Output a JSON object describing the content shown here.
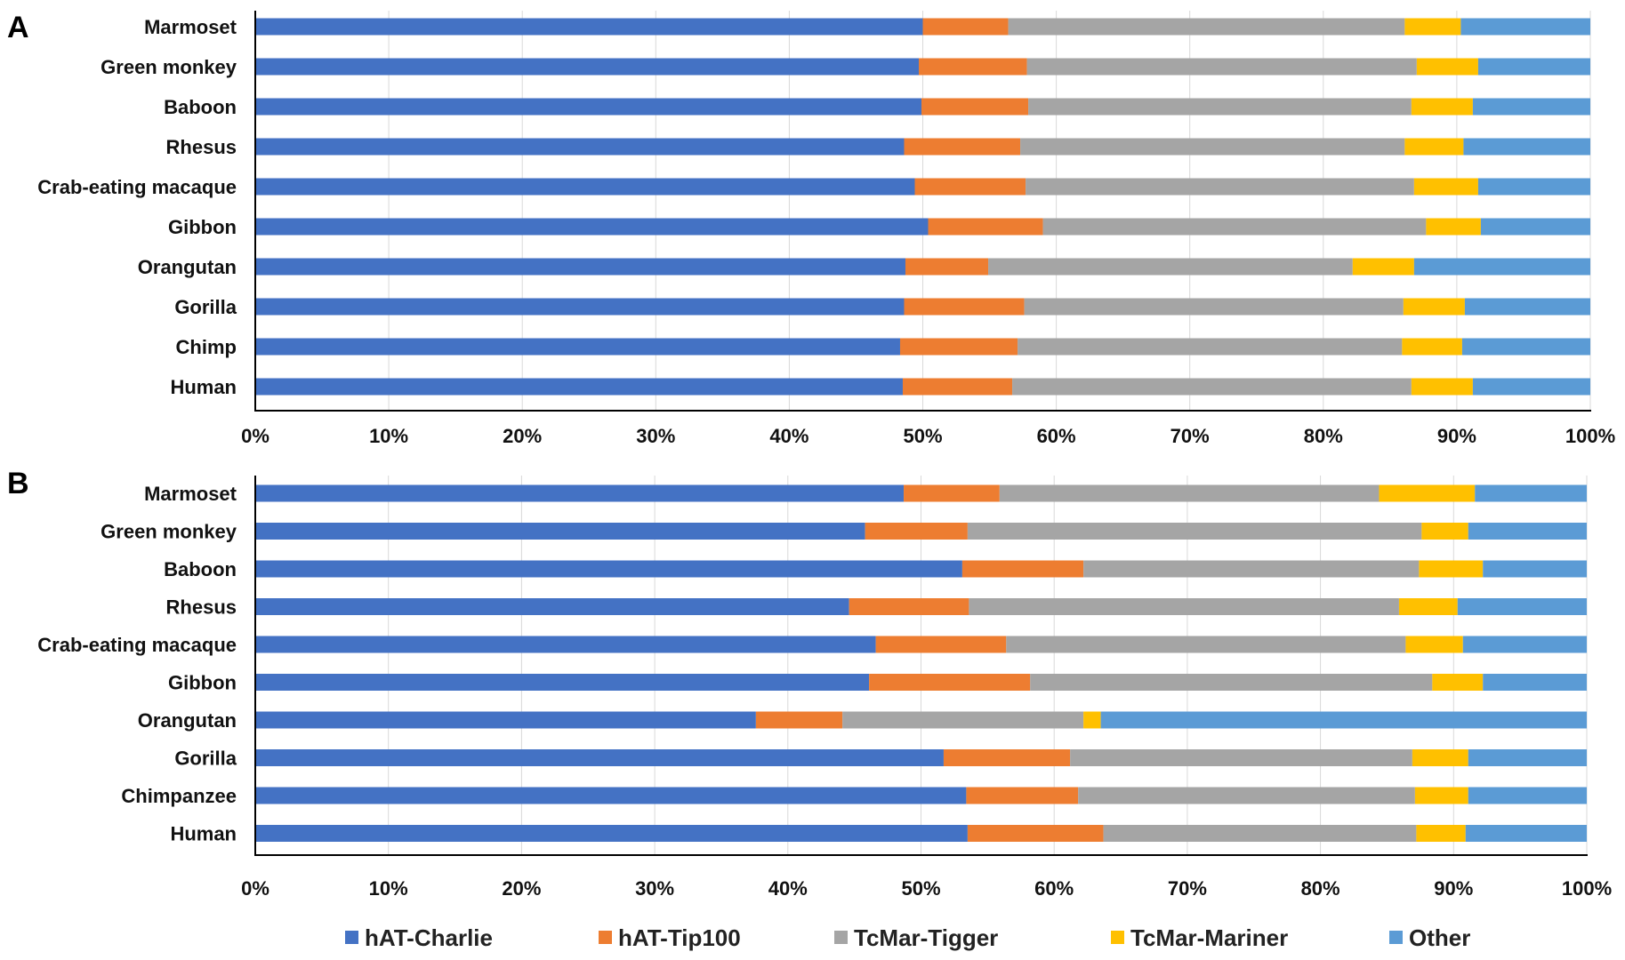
{
  "chart_data": [
    {
      "type": "bar",
      "orientation": "horizontal",
      "stacked": "percent",
      "panel": "A",
      "categories": [
        "Marmoset",
        "Green monkey",
        "Baboon",
        "Rhesus",
        "Crab-eating macaque",
        "Gibbon",
        "Orangutan",
        "Gorilla",
        "Chimp",
        "Human"
      ],
      "series": [
        {
          "name": "hAT-Charlie",
          "values": [
            50.0,
            49.7,
            49.9,
            48.6,
            49.4,
            50.4,
            48.7,
            48.6,
            48.3,
            48.5
          ]
        },
        {
          "name": "hAT-Tip100",
          "values": [
            6.4,
            8.1,
            8.0,
            8.7,
            8.3,
            8.6,
            6.2,
            9.0,
            8.8,
            8.2
          ]
        },
        {
          "name": "TcMar-Tigger",
          "values": [
            29.7,
            29.2,
            28.7,
            28.8,
            29.1,
            28.7,
            27.3,
            28.4,
            28.8,
            29.9
          ]
        },
        {
          "name": "TcMar-Mariner",
          "values": [
            4.2,
            4.6,
            4.6,
            4.4,
            4.8,
            4.1,
            4.6,
            4.6,
            4.5,
            4.6
          ]
        },
        {
          "name": "Other",
          "values": [
            9.7,
            8.4,
            8.8,
            9.5,
            8.4,
            8.2,
            13.2,
            9.4,
            9.6,
            8.8
          ]
        }
      ],
      "xlim": [
        0,
        100
      ],
      "xticks": [
        "0%",
        "10%",
        "20%",
        "30%",
        "40%",
        "50%",
        "60%",
        "70%",
        "80%",
        "90%",
        "100%"
      ],
      "grid": "vertical"
    },
    {
      "type": "bar",
      "orientation": "horizontal",
      "stacked": "percent",
      "panel": "B",
      "categories": [
        "Marmoset",
        "Green monkey",
        "Baboon",
        "Rhesus",
        "Crab-eating macaque",
        "Gibbon",
        "Orangutan",
        "Gorilla",
        "Chimpanzee",
        "Human"
      ],
      "series": [
        {
          "name": "hAT-Charlie",
          "values": [
            48.7,
            45.8,
            53.1,
            44.6,
            46.6,
            46.1,
            37.6,
            51.7,
            53.4,
            53.5
          ]
        },
        {
          "name": "hAT-Tip100",
          "values": [
            7.2,
            7.7,
            9.1,
            9.0,
            9.8,
            12.1,
            6.5,
            9.5,
            8.4,
            10.2
          ]
        },
        {
          "name": "TcMar-Tigger",
          "values": [
            28.5,
            34.1,
            25.2,
            32.3,
            30.0,
            30.2,
            18.1,
            25.7,
            25.3,
            23.5
          ]
        },
        {
          "name": "TcMar-Mariner",
          "values": [
            7.2,
            3.5,
            4.8,
            4.4,
            4.3,
            3.8,
            1.3,
            4.2,
            4.0,
            3.7
          ]
        },
        {
          "name": "Other",
          "values": [
            8.4,
            8.9,
            7.8,
            9.7,
            9.3,
            7.8,
            36.5,
            8.9,
            8.9,
            9.1
          ]
        }
      ],
      "xlim": [
        0,
        100
      ],
      "xticks": [
        "0%",
        "10%",
        "20%",
        "30%",
        "40%",
        "50%",
        "60%",
        "70%",
        "80%",
        "90%",
        "100%"
      ],
      "grid": "vertical"
    }
  ],
  "legend": {
    "position": "bottom",
    "entries": [
      "hAT-Charlie",
      "hAT-Tip100",
      "TcMar-Tigger",
      "TcMar-Mariner",
      "Other"
    ]
  },
  "colors": {
    "hAT-Charlie": "#4472c4",
    "hAT-Tip100": "#ed7d31",
    "TcMar-Tigger": "#a5a5a5",
    "TcMar-Mariner": "#ffc000",
    "Other": "#5b9bd5"
  }
}
